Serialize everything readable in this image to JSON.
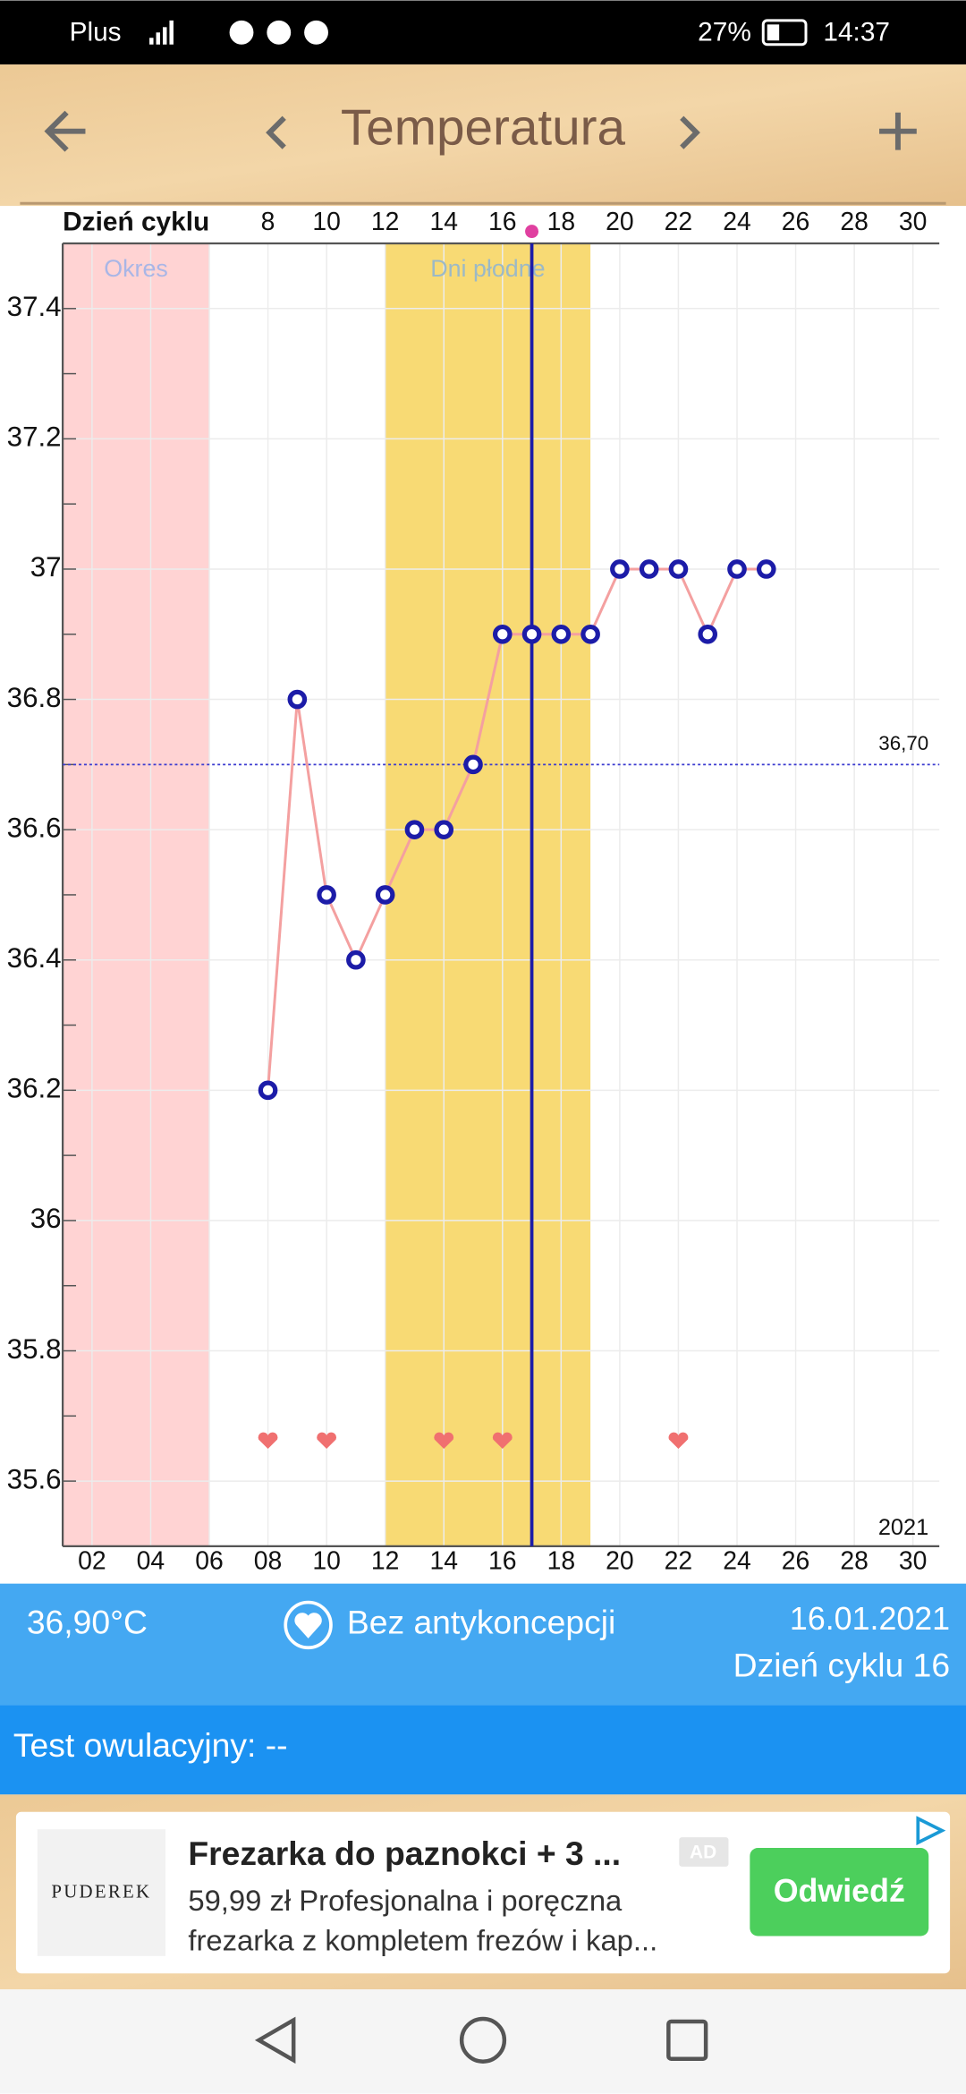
{
  "status_bar": {
    "carrier": "Plus",
    "battery": "27%",
    "time": "14:37"
  },
  "header": {
    "title": "Temperatura"
  },
  "chart_data": {
    "type": "line",
    "x_axis_label": "Dzień cyklu",
    "x": [
      8,
      9,
      10,
      11,
      12,
      13,
      14,
      15,
      16,
      17,
      18,
      19,
      20,
      21,
      22,
      23,
      24,
      25
    ],
    "values": [
      36.2,
      36.8,
      36.5,
      36.4,
      36.5,
      36.6,
      36.6,
      36.7,
      36.9,
      36.9,
      36.9,
      36.9,
      37,
      37,
      37,
      36.9,
      37,
      37
    ],
    "color": "#f4a0a0",
    "marker_color": "#1c1ca8",
    "xlim": [
      1,
      30.9
    ],
    "ylim": [
      35.5,
      37.5
    ],
    "xticks": [
      8,
      10,
      12,
      14,
      16,
      18,
      20,
      22,
      24,
      26,
      28,
      30
    ],
    "date_ticks": [
      {
        "value": 2,
        "label": "02"
      },
      {
        "value": 4,
        "label": "04"
      },
      {
        "value": 6,
        "label": "06"
      },
      {
        "value": 8,
        "label": "08"
      },
      {
        "value": 10,
        "label": "10"
      },
      {
        "value": 12,
        "label": "12"
      },
      {
        "value": 14,
        "label": "14"
      },
      {
        "value": 16,
        "label": "16"
      },
      {
        "value": 18,
        "label": "18"
      },
      {
        "value": 20,
        "label": "20"
      },
      {
        "value": 22,
        "label": "22"
      },
      {
        "value": 24,
        "label": "24"
      },
      {
        "value": 26,
        "label": "26"
      },
      {
        "value": 28,
        "label": "28"
      },
      {
        "value": 30,
        "label": "30"
      }
    ],
    "yticks": [
      35.6,
      35.8,
      36,
      36.2,
      36.4,
      36.6,
      36.8,
      37,
      37.2,
      37.4
    ],
    "minor_yticks": [
      35.7,
      35.9,
      36.1,
      36.3,
      36.5,
      36.7,
      36.9,
      37.1,
      37.3
    ],
    "grid": true,
    "bands": [
      {
        "label": "Okres",
        "start": 1,
        "end": 6,
        "color": "#ffd3d3",
        "label_color": "#a9b6e6"
      },
      {
        "label": "Dni płodne",
        "start": 12,
        "end": 19,
        "color": "#f8da74",
        "label_color": "#9cb9c6"
      }
    ],
    "reference_line": {
      "value": 36.7,
      "label": "36,70",
      "color": "#3b3bd0"
    },
    "marker_day": 17,
    "hearts": [
      8,
      10,
      14,
      16,
      22
    ],
    "heart_color": "#f07070",
    "year": "2021"
  },
  "info": {
    "temperature": "36,90°C",
    "contraception": "Bez antykoncepcji",
    "date": "16.01.2021",
    "cycle_day": "Dzień cyklu 16"
  },
  "test": {
    "text": "Test owulacyjny: --"
  },
  "ad": {
    "brand": "PUDEREK",
    "title": "Frezarka do paznokci + 3 ...",
    "badge": "AD",
    "line1": "59,99 zł Profesjonalna i poręczna",
    "line2": "frezarka z kompletem frezów i kap...",
    "button": "Odwiedź"
  }
}
